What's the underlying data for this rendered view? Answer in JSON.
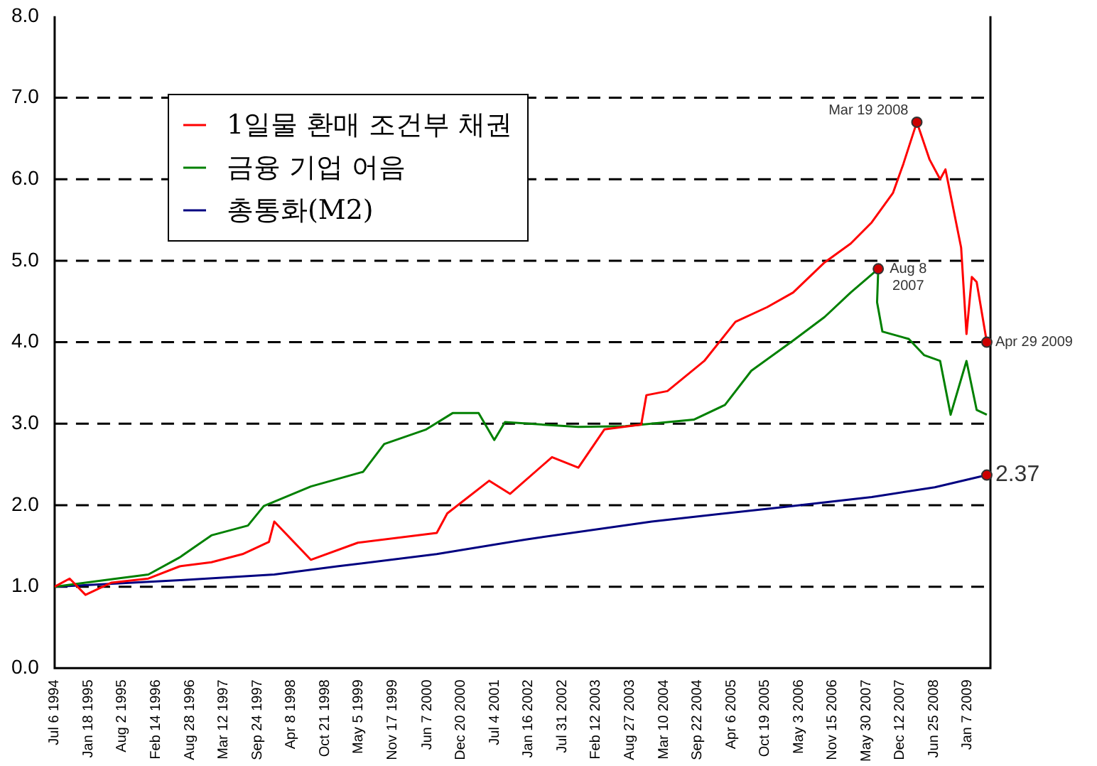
{
  "chart_data": {
    "type": "line",
    "xlim": [
      "1994-07-06",
      "2009-05-20"
    ],
    "xticks": [
      {
        "value": "1994-07-06",
        "label": "Jul 6 1994"
      },
      {
        "value": "1995-01-18",
        "label": "Jan 18 1995"
      },
      {
        "value": "1995-08-02",
        "label": "Aug 2 1995"
      },
      {
        "value": "1996-02-14",
        "label": "Feb 14 1996"
      },
      {
        "value": "1996-08-28",
        "label": "Aug 28 1996"
      },
      {
        "value": "1997-03-12",
        "label": "Mar 12 1997"
      },
      {
        "value": "1997-09-24",
        "label": "Sep 24 1997"
      },
      {
        "value": "1998-04-08",
        "label": "Apr 8 1998"
      },
      {
        "value": "1998-10-21",
        "label": "Oct 21 1998"
      },
      {
        "value": "1999-05-05",
        "label": "May 5 1999"
      },
      {
        "value": "1999-11-17",
        "label": "Nov 17 1999"
      },
      {
        "value": "2000-06-07",
        "label": "Jun 7 2000"
      },
      {
        "value": "2000-12-20",
        "label": "Dec 20 2000"
      },
      {
        "value": "2001-07-04",
        "label": "Jul 4 2001"
      },
      {
        "value": "2002-01-16",
        "label": "Jan 16 2002"
      },
      {
        "value": "2002-07-31",
        "label": "Jul 31 2002"
      },
      {
        "value": "2003-02-12",
        "label": "Feb 12 2003"
      },
      {
        "value": "2003-08-27",
        "label": "Aug 27 2003"
      },
      {
        "value": "2004-03-10",
        "label": "Mar 10 2004"
      },
      {
        "value": "2004-09-22",
        "label": "Sep 22 2004"
      },
      {
        "value": "2005-04-06",
        "label": "Apr 6 2005"
      },
      {
        "value": "2005-10-19",
        "label": "Oct 19 2005"
      },
      {
        "value": "2006-05-03",
        "label": "May 3 2006"
      },
      {
        "value": "2006-11-15",
        "label": "Nov 15 2006"
      },
      {
        "value": "2007-05-30",
        "label": "May 30 2007"
      },
      {
        "value": "2007-12-12",
        "label": "Dec 12 2007"
      },
      {
        "value": "2008-06-25",
        "label": "Jun 25 2008"
      },
      {
        "value": "2009-01-07",
        "label": "Jan 7 2009"
      }
    ],
    "ylim": [
      0,
      8
    ],
    "yticks": [
      {
        "value": 0,
        "label": "0.0"
      },
      {
        "value": 1,
        "label": "1.0"
      },
      {
        "value": 2,
        "label": "2.0"
      },
      {
        "value": 3,
        "label": "3.0"
      },
      {
        "value": 4,
        "label": "4.0"
      },
      {
        "value": 5,
        "label": "5.0"
      },
      {
        "value": 6,
        "label": "6.0"
      },
      {
        "value": 7,
        "label": "7.0"
      },
      {
        "value": 8,
        "label": "8.0"
      }
    ],
    "grid": "y",
    "legend": "top left",
    "marker": "none",
    "line_style": "solid",
    "series": [
      {
        "name": "1일물 환매 조건부 채권",
        "color": "#ff0000",
        "x": [
          "1994-07-06",
          "1994-10",
          "1995-01",
          "1995-06",
          "1996-01",
          "1996-07",
          "1997-01",
          "1997-07",
          "1997-12",
          "1998-01",
          "1998-08",
          "1999-05",
          "2000-08",
          "2000-10",
          "2001-06",
          "2001-10",
          "2002-06",
          "2002-11",
          "2003-04",
          "2003-11",
          "2003-12",
          "2004-04",
          "2004-11",
          "2005-05",
          "2005-11",
          "2006-04",
          "2006-10",
          "2007-03",
          "2007-07",
          "2007-11",
          "2008-01",
          "2008-03-19",
          "2008-06",
          "2008-08",
          "2008-09",
          "2008-12",
          "2009-01",
          "2009-02",
          "2009-03",
          "2009-04-29"
        ],
        "values": [
          1.0,
          1.1,
          0.9,
          1.05,
          1.1,
          1.25,
          1.3,
          1.4,
          1.55,
          1.8,
          1.33,
          1.54,
          1.66,
          1.9,
          2.3,
          2.14,
          2.59,
          2.46,
          2.93,
          2.99,
          3.35,
          3.4,
          3.77,
          4.25,
          4.43,
          4.61,
          4.98,
          5.21,
          5.47,
          5.83,
          6.19,
          6.7,
          6.24,
          6.0,
          6.12,
          5.16,
          4.1,
          4.8,
          4.74,
          4.0
        ]
      },
      {
        "name": "금융 기업 어음",
        "color": "#008000",
        "x": [
          "1994-07-06",
          "1995-01",
          "1995-07",
          "1996-01",
          "1996-07",
          "1997-01",
          "1997-08",
          "1997-11",
          "1998-08",
          "1999-06",
          "1999-10",
          "2000-06",
          "2000-11",
          "2001-04",
          "2001-07",
          "2001-09",
          "2002-11",
          "2003-08",
          "2004-09",
          "2005-03",
          "2005-08",
          "2006-04",
          "2006-10",
          "2007-03",
          "2007-08-08",
          "2007-08",
          "2007-09",
          "2008-02",
          "2008-05",
          "2008-08",
          "2008-10",
          "2009-01",
          "2009-03",
          "2009-04-29"
        ],
        "values": [
          1.0,
          1.05,
          1.1,
          1.15,
          1.36,
          1.63,
          1.75,
          1.99,
          2.23,
          2.41,
          2.75,
          2.93,
          3.13,
          3.13,
          2.8,
          3.02,
          2.96,
          2.97,
          3.05,
          3.23,
          3.65,
          4.02,
          4.31,
          4.61,
          4.9,
          4.49,
          4.13,
          4.04,
          3.84,
          3.77,
          3.11,
          3.77,
          3.17,
          3.11
        ]
      },
      {
        "name": "총통화(M2)",
        "color": "#000080",
        "x": [
          "1994-07-06",
          "1996-07",
          "1998-01",
          "1999-01",
          "2000-08",
          "2002-01",
          "2004-01",
          "2006-01",
          "2007-07",
          "2008-07",
          "2009-04-29"
        ],
        "values": [
          1.0,
          1.08,
          1.15,
          1.25,
          1.4,
          1.58,
          1.8,
          1.97,
          2.1,
          2.22,
          2.37
        ]
      }
    ],
    "annotations": [
      {
        "text": "Mar 19 2008",
        "x": "2008-03-19",
        "y": 6.7
      },
      {
        "text": "Aug 8 2007",
        "x": "2007-08-08",
        "y": 4.9
      },
      {
        "text": "Apr 29 2009",
        "x": "2009-04-29",
        "y": 4.0
      },
      {
        "text": "2.37",
        "x": "2009-04-29",
        "y": 2.37
      }
    ]
  }
}
